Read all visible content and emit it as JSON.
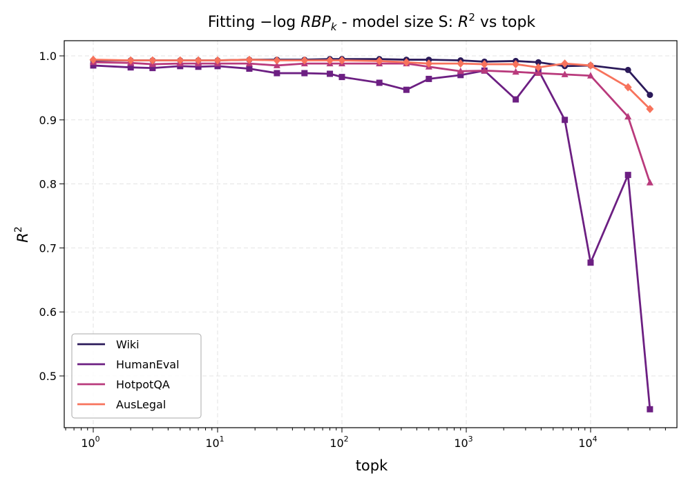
{
  "chart_data": {
    "type": "line",
    "title_main": "Fitting −log ",
    "title_rbp": "RBP",
    "title_sub": "k",
    "title_rest": " - model size S: ",
    "title_r": "R",
    "title_sup": "2",
    "title_tail": " vs topk",
    "xlabel": "topk",
    "ylabel": "R",
    "ylabel_sup": "2",
    "xscale": "log",
    "xlim": [
      0.6,
      60000
    ],
    "ylim": [
      0.42,
      1.025
    ],
    "grid": true,
    "legend_position": "lower-left",
    "x_ticks": [
      {
        "v": 1,
        "exp": "0"
      },
      {
        "v": 10,
        "exp": "1"
      },
      {
        "v": 100,
        "exp": "2"
      },
      {
        "v": 1000,
        "exp": "3"
      },
      {
        "v": 10000,
        "exp": "4"
      }
    ],
    "x_tick_base": "10",
    "y_ticks": [
      "0.5",
      "0.6",
      "0.7",
      "0.8",
      "0.9",
      "1.0"
    ],
    "x": [
      1,
      2,
      3,
      5,
      7,
      10,
      18,
      30,
      50,
      80,
      100,
      200,
      330,
      500,
      900,
      1400,
      2500,
      3800,
      6200,
      10000,
      20000,
      30000
    ],
    "series": [
      {
        "name": "Wiki",
        "color": "#2b1a5a",
        "marker": "circle",
        "values": [
          0.993,
          0.993,
          0.993,
          0.993,
          0.993,
          0.993,
          0.994,
          0.994,
          0.994,
          0.995,
          0.995,
          0.995,
          0.994,
          0.994,
          0.993,
          0.991,
          0.992,
          0.99,
          0.984,
          0.985,
          0.978,
          0.939
        ]
      },
      {
        "name": "HumanEval",
        "color": "#6c1f82",
        "marker": "square",
        "values": [
          0.985,
          0.982,
          0.981,
          0.984,
          0.983,
          0.984,
          0.98,
          0.973,
          0.973,
          0.972,
          0.967,
          0.958,
          0.947,
          0.964,
          0.97,
          0.977,
          0.932,
          0.978,
          0.9,
          0.677,
          0.814,
          0.448
        ]
      },
      {
        "name": "HotpotQA",
        "color": "#b93a7c",
        "marker": "triangle",
        "values": [
          0.99,
          0.989,
          0.987,
          0.988,
          0.988,
          0.988,
          0.988,
          0.985,
          0.988,
          0.988,
          0.988,
          0.988,
          0.988,
          0.983,
          0.976,
          0.977,
          0.975,
          0.973,
          0.971,
          0.969,
          0.905,
          0.802
        ]
      },
      {
        "name": "AusLegal",
        "color": "#f7735c",
        "marker": "diamond",
        "values": [
          0.994,
          0.993,
          0.993,
          0.993,
          0.993,
          0.993,
          0.994,
          0.993,
          0.993,
          0.993,
          0.993,
          0.992,
          0.99,
          0.988,
          0.988,
          0.987,
          0.987,
          0.982,
          0.988,
          0.985,
          0.951,
          0.917
        ]
      }
    ]
  }
}
